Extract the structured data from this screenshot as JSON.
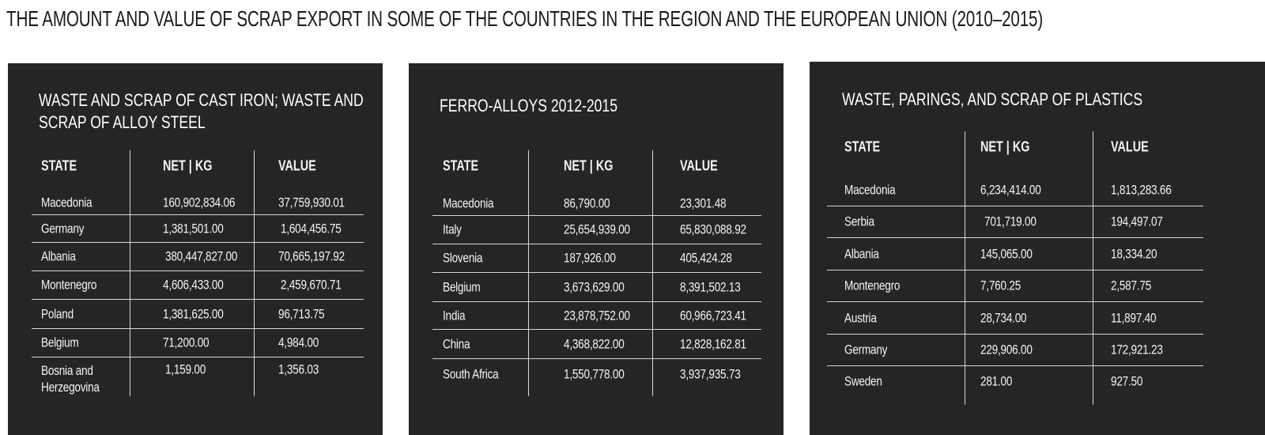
{
  "title": "THE AMOUNT AND VALUE OF SCRAP EXPORT IN SOME OF THE COUNTRIES IN THE REGION AND THE EUROPEAN UNION (2010–2015)",
  "panels": [
    {
      "title_lines": [
        "WASTE AND SCRAP OF CAST IRON; WASTE AND",
        "SCRAP OF ALLOY STEEL"
      ],
      "headers": [
        "STATE",
        "NET | KG",
        "VALUE"
      ],
      "rows": [
        [
          "Macedonia",
          "160,902,834.06",
          "37,759,930.01"
        ],
        [
          "Germany",
          "1,381,501.00",
          "1,604,456.75"
        ],
        [
          "Albania",
          "380,447,827.00",
          "70,665,197.92"
        ],
        [
          "Montenegro",
          "4,606,433.00",
          "2,459,670.71"
        ],
        [
          "Poland",
          "1,381,625.00",
          "96,713.75"
        ],
        [
          "Belgium",
          "71,200.00",
          "4,984.00"
        ],
        [
          "Bosnia and\nHerzegovina",
          "1,159.00",
          "1,356.03"
        ]
      ]
    },
    {
      "title_lines": [
        "FERRO-ALLOYS 2012-2015"
      ],
      "headers": [
        "STATE",
        "NET | KG",
        "VALUE"
      ],
      "rows": [
        [
          "Macedonia",
          "86,790.00",
          "23,301.48"
        ],
        [
          "Italy",
          "25,654,939.00",
          "65,830,088.92"
        ],
        [
          "Slovenia",
          "187,926.00",
          "405,424.28"
        ],
        [
          "Belgium",
          "3,673,629.00",
          "8,391,502.13"
        ],
        [
          "India",
          "23,878,752.00",
          "60,966,723.41"
        ],
        [
          "China",
          "4,368,822.00",
          "12,828,162.81"
        ],
        [
          "South Africa",
          "1,550,778.00",
          "3,937,935.73"
        ]
      ]
    },
    {
      "title_lines": [
        "WASTE, PARINGS, AND SCRAP OF PLASTICS"
      ],
      "headers": [
        "STATE",
        "NET | KG",
        "VALUE"
      ],
      "rows": [
        [
          "Macedonia",
          "6,234,414.00",
          "1,813,283.66"
        ],
        [
          "Serbia",
          "701,719.00",
          "194,497.07"
        ],
        [
          "Albania",
          "145,065.00",
          "18,334.20"
        ],
        [
          "Montenegro",
          "7,760.25",
          "2,587.75"
        ],
        [
          "Austria",
          "28,734.00",
          "11,897.40"
        ],
        [
          "Germany",
          "229,906.00",
          "172,921.23"
        ],
        [
          "Sweden",
          "281.00",
          "927.50"
        ]
      ]
    }
  ]
}
